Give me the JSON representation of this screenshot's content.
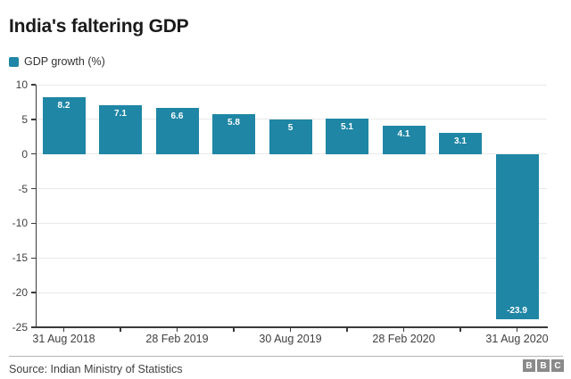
{
  "header": {
    "title": "India's faltering GDP"
  },
  "legend": {
    "label": "GDP growth (%)"
  },
  "colors": {
    "bar": "#1f86a5",
    "grid": "#e9e9e9",
    "axis": "#3a3a3a",
    "logo_block": "#8a8a8a"
  },
  "chart_data": {
    "type": "bar",
    "title": "India's faltering GDP",
    "legend_entries": [
      "GDP growth (%)"
    ],
    "legend_position": "top-left",
    "categories": [
      "31 Aug 2018",
      "",
      "28 Feb 2019",
      "",
      "30 Aug 2019",
      "",
      "28 Feb 2020",
      "",
      "31 Aug 2020"
    ],
    "values": [
      8.2,
      7.1,
      6.6,
      5.8,
      5,
      5.1,
      4.1,
      3.1,
      -23.9
    ],
    "value_labels": [
      "8.2",
      "7.1",
      "6.6",
      "5.8",
      "5",
      "5.1",
      "4.1",
      "3.1",
      "-23.9"
    ],
    "xlabel": "",
    "ylabel": "",
    "ylim": [
      -25,
      10
    ],
    "ytick_step": 5,
    "yticks": [
      10,
      5,
      0,
      -5,
      -10,
      -15,
      -20,
      -25
    ],
    "grid": true
  },
  "footer": {
    "source": "Source: Indian Ministry of Statistics",
    "logo_letters": [
      "B",
      "B",
      "C"
    ]
  }
}
